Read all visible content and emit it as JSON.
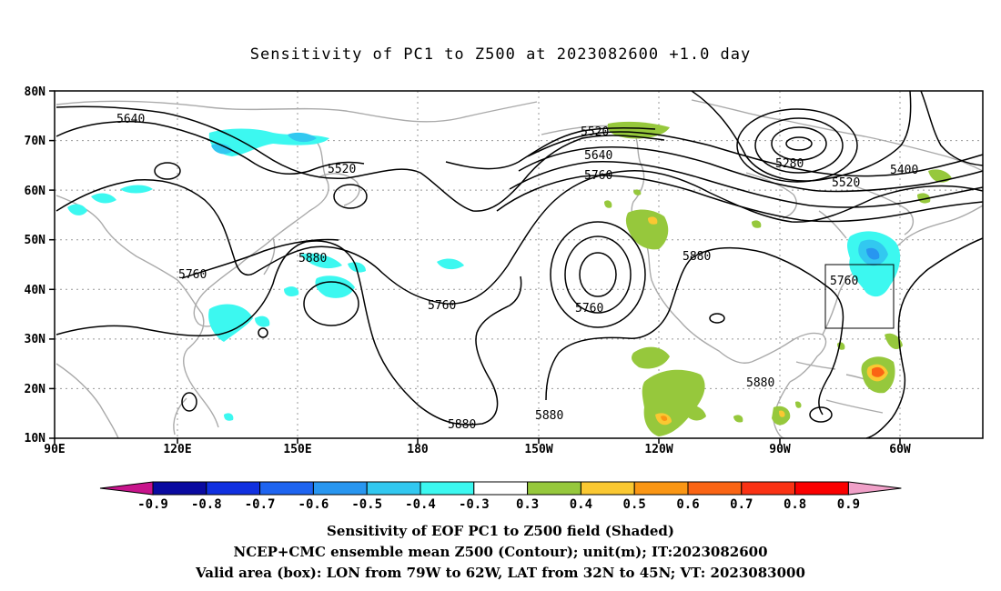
{
  "title": "Sensitivity of PC1 to Z500 at 2023082600 +1.0 day",
  "axes": {
    "lat_labels": [
      "80N",
      "70N",
      "60N",
      "50N",
      "40N",
      "30N",
      "20N",
      "10N"
    ],
    "lon_labels": [
      "90E",
      "120E",
      "150E",
      "180",
      "150W",
      "120W",
      "90W",
      "60W"
    ]
  },
  "contour_labels": [
    "5640",
    "5520",
    "5760",
    "5880",
    "5520",
    "5640",
    "5760",
    "5760",
    "5880",
    "5280",
    "5400",
    "5520",
    "5880",
    "5760",
    "5880",
    "5880",
    "5880"
  ],
  "box_region": {
    "lon_from": "79W",
    "lon_to": "62W",
    "lat_from": "32N",
    "lat_to": "45N"
  },
  "colorbar": {
    "labels": [
      "-0.9",
      "-0.8",
      "-0.7",
      "-0.6",
      "-0.5",
      "-0.4",
      "-0.3",
      "0.3",
      "0.4",
      "0.5",
      "0.6",
      "0.7",
      "0.8",
      "0.9"
    ],
    "colors": [
      "#0a0aa0",
      "#1030e0",
      "#1e64f0",
      "#2896f0",
      "#32c8f0",
      "#3cf8f0",
      "#ffffff",
      "#96c83c",
      "#fac832",
      "#fa9614",
      "#fa6414",
      "#fa3214",
      "#fa0000"
    ],
    "low_tip_color": "#c8148c",
    "high_tip_color": "#f0a0c8"
  },
  "footer": {
    "line1": "Sensitivity of EOF PC1 to Z500 field (Shaded)",
    "line2": "NCEP+CMC ensemble mean Z500 (Contour); unit(m); IT:2023082600",
    "line3": "Valid area (box): LON from 79W to 62W, LAT from 32N to 45N; VT: 2023083000"
  }
}
